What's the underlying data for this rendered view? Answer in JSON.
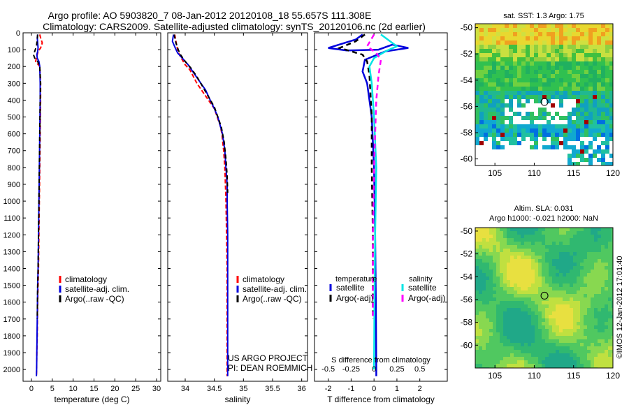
{
  "title_line1": "Argo profile: AO 5903820_7 08-Jan-2012 20120108_18 55.657S 111.308E",
  "title_line2": "Climatology: CARS2009. Satellite-adjusted climatology: synTS_20120106.nc (2d earlier)",
  "sst_map_title": "sat. SST: 1.3  Argo: 1.75",
  "sla_title_line1": "Altim. SLA: 0.031",
  "sla_title_line2": "Argo h1000: -0.021  h2000: NaN",
  "project_line1": "US ARGO PROJECT",
  "project_line2": "PI: DEAN ROEMMICH",
  "imos_stamp": "©IMOS 12-Jan-2012 17:01:40",
  "colors": {
    "climatology": "#ff0000",
    "satellite": "#0000dd",
    "argo": "#000000",
    "sal_satellite": "#00e5e5",
    "sal_argo": "#ff00ff"
  },
  "chart_data": [
    {
      "type": "line",
      "id": "temp",
      "xlabel": "temperature (deg C)",
      "xlim": [
        -2,
        31
      ],
      "xticks": [
        0,
        5,
        10,
        15,
        20,
        25,
        30
      ],
      "ylim": [
        2070,
        0
      ],
      "yticks": [
        0,
        100,
        200,
        300,
        400,
        500,
        600,
        700,
        800,
        900,
        1000,
        1100,
        1200,
        1300,
        1400,
        1500,
        1600,
        1700,
        1800,
        1900,
        2000
      ],
      "legend": [
        "climatology",
        "satellite-adj. clim.",
        "Argo(..raw -QC)"
      ],
      "series": [
        {
          "name": "climatology",
          "x": [
            2.0,
            2.2,
            2.6,
            2.2,
            1.6,
            1.4,
            1.2,
            1.0,
            2.0,
            2.2,
            2.2,
            2.1,
            2.0,
            1.9,
            1.8,
            1.7,
            1.6,
            1.5,
            1.45,
            1.4,
            1.3,
            1.25,
            1.2
          ],
          "y": [
            10,
            30,
            60,
            90,
            110,
            130,
            150,
            170,
            200,
            300,
            400,
            600,
            800,
            1000,
            1200,
            1400,
            1500,
            1600,
            1700,
            1800,
            1900,
            2000,
            2040
          ]
        },
        {
          "name": "satellite-adj. clim.",
          "x": [
            1.5,
            1.4,
            1.5,
            1.6,
            1.5,
            1.3,
            1.4,
            1.8,
            2.0,
            2.1,
            2.1,
            2.0,
            1.9,
            1.8,
            1.7,
            1.6,
            1.5,
            1.45,
            1.4,
            1.35,
            1.3,
            1.25,
            1.2
          ],
          "y": [
            10,
            30,
            60,
            90,
            110,
            130,
            150,
            170,
            200,
            300,
            400,
            600,
            800,
            1000,
            1200,
            1400,
            1500,
            1600,
            1700,
            1800,
            1900,
            2000,
            2040
          ]
        },
        {
          "name": "Argo(..raw -QC)",
          "x": [
            1.5,
            1.4,
            1.2,
            0.8,
            0.5,
            0.8,
            1.5,
            2.0,
            2.2,
            2.1,
            2.0,
            1.9,
            1.8,
            1.7,
            1.6,
            1.5,
            1.45,
            1.4
          ],
          "y": [
            10,
            40,
            80,
            110,
            130,
            150,
            170,
            200,
            300,
            400,
            600,
            800,
            1000,
            1200,
            1400,
            1500,
            1600,
            1700
          ]
        }
      ]
    },
    {
      "type": "line",
      "id": "sal",
      "xlabel": "salinity",
      "xlim": [
        33.7,
        36.1
      ],
      "xticks": [
        34,
        34.5,
        35,
        35.5,
        36
      ],
      "ylim": [
        2070,
        0
      ],
      "legend": [
        "climatology",
        "satellite-adj. clim.",
        "Argo(..raw -QC)"
      ],
      "series": [
        {
          "name": "climatology",
          "x": [
            33.82,
            33.84,
            33.87,
            33.9,
            33.95,
            34.0,
            34.08,
            34.2,
            34.3,
            34.4,
            34.5,
            34.55,
            34.6,
            34.63,
            34.66,
            34.68,
            34.69,
            34.7,
            34.71,
            34.72,
            34.72,
            34.72,
            34.72,
            34.72
          ],
          "y": [
            10,
            50,
            100,
            130,
            160,
            190,
            220,
            300,
            350,
            400,
            450,
            500,
            550,
            600,
            700,
            800,
            900,
            1000,
            1200,
            1400,
            1600,
            1800,
            2000,
            2040
          ]
        },
        {
          "name": "satellite-adj. clim.",
          "x": [
            33.8,
            33.78,
            33.83,
            33.87,
            33.95,
            34.05,
            34.15,
            34.25,
            34.35,
            34.43,
            34.5,
            34.56,
            34.6,
            34.64,
            34.68,
            34.7,
            34.72,
            34.72,
            34.73,
            34.73,
            34.73,
            34.73,
            34.73
          ],
          "y": [
            10,
            50,
            90,
            120,
            150,
            190,
            240,
            290,
            340,
            400,
            450,
            500,
            550,
            600,
            700,
            800,
            900,
            1000,
            1200,
            1400,
            1600,
            1800,
            2040
          ]
        },
        {
          "name": "Argo(..raw -QC)",
          "x": [
            33.81,
            33.84,
            33.88,
            33.92,
            34.0,
            34.1,
            34.2,
            34.3,
            34.4,
            34.5,
            34.56,
            34.62,
            34.67,
            34.7,
            34.72,
            34.73
          ],
          "y": [
            10,
            60,
            100,
            130,
            170,
            210,
            260,
            320,
            380,
            440,
            500,
            560,
            650,
            750,
            850,
            950
          ]
        }
      ]
    },
    {
      "type": "line",
      "id": "diff",
      "xlabel": "T difference from climatology",
      "xlabel_top": "S difference from climatology",
      "xlim": [
        -2.6,
        3.2
      ],
      "xticks": [
        -2,
        -1,
        0,
        1,
        2
      ],
      "xticks_top": [
        -0.5,
        -0.25,
        0,
        0.25,
        0.5
      ],
      "ylim": [
        2070,
        0
      ],
      "legend_headers": [
        "temperature",
        "salinity"
      ],
      "legend": [
        "satellite",
        "Argo(-adj)",
        "satellite",
        "Argo(-adj)"
      ],
      "series": [
        {
          "name": "satellite",
          "x": [
            -0.5,
            -0.8,
            -2.0,
            -1.2,
            0.2,
            0.8,
            1.5,
            0.5,
            -0.4,
            -0.5,
            -0.3,
            -0.1,
            0.0,
            0.05,
            0.08,
            0.1,
            0.1
          ],
          "y": [
            10,
            40,
            90,
            105,
            100,
            70,
            90,
            110,
            160,
            230,
            300,
            500,
            800,
            1200,
            1600,
            2000,
            2040
          ]
        },
        {
          "name": "Argo(-adj)",
          "x": [
            -0.4,
            -0.8,
            -1.5,
            -1.0,
            -0.5,
            -0.3,
            -0.2,
            -0.1,
            -0.1,
            -0.05,
            -0.05,
            -0.05
          ],
          "y": [
            10,
            50,
            90,
            110,
            130,
            170,
            250,
            500,
            800,
            1200,
            1600,
            1700
          ]
        },
        {
          "name": "satellite",
          "x": [
            0.3,
            0.6,
            1.0,
            0.5,
            0.0,
            -0.2,
            -0.1,
            0.0,
            0.1,
            0.05,
            0.02,
            0.0
          ],
          "y": [
            10,
            40,
            80,
            110,
            150,
            200,
            300,
            500,
            800,
            1200,
            1600,
            2000
          ]
        },
        {
          "name": "Argo(-adj)",
          "x": [
            0.0,
            -0.3,
            0.1,
            0.3,
            0.2,
            0.1,
            0.0,
            -0.05,
            -0.05,
            -0.05
          ],
          "y": [
            10,
            80,
            120,
            160,
            250,
            400,
            800,
            1200,
            1600,
            1700
          ]
        }
      ]
    },
    {
      "type": "heatmap",
      "id": "sstmap",
      "xlim": [
        102.5,
        120
      ],
      "ylim": [
        -60.5,
        -49.7
      ],
      "xticks": [
        105,
        110,
        115,
        120
      ],
      "yticks": [
        -50,
        -52,
        -54,
        -56,
        -58,
        -60
      ],
      "marker": [
        111.3,
        -55.66
      ]
    },
    {
      "type": "heatmap",
      "id": "slamap",
      "xlim": [
        102.5,
        120
      ],
      "ylim": [
        -62,
        -49.7
      ],
      "xticks": [
        105,
        110,
        115,
        120
      ],
      "yticks": [
        -50,
        -52,
        -54,
        -56,
        -58,
        -60
      ],
      "marker": [
        111.3,
        -55.66
      ]
    }
  ]
}
